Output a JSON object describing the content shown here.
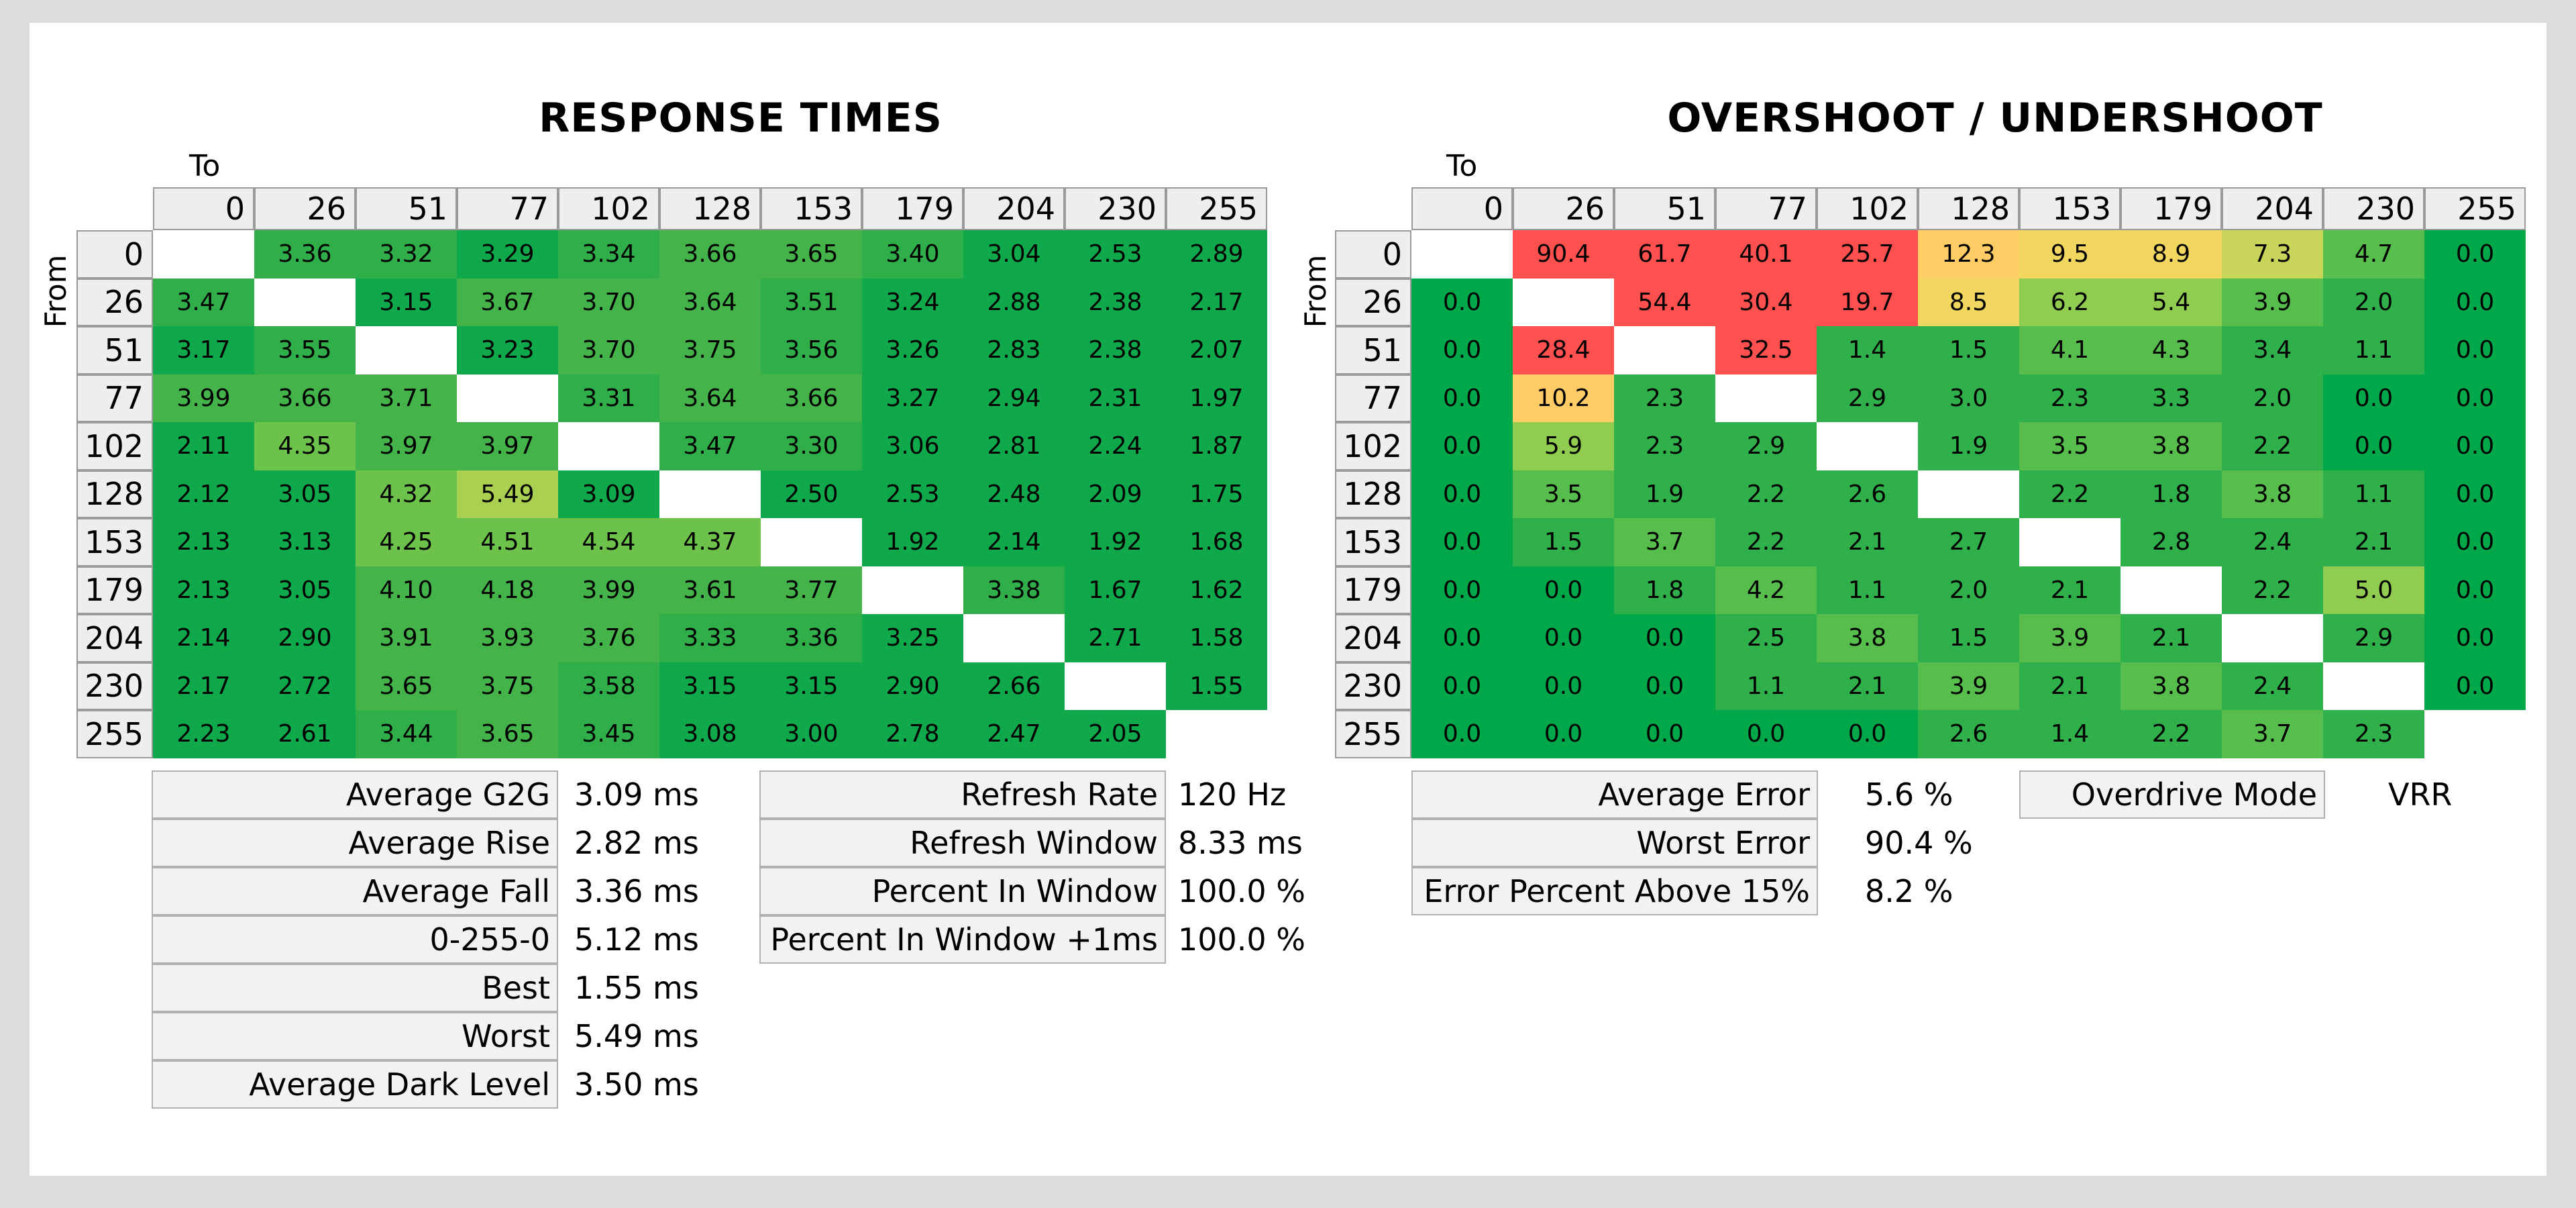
{
  "chart_data": [
    {
      "type": "heatmap",
      "title": "RESPONSE TIMES",
      "xlabel": "To",
      "ylabel": "From",
      "x": [
        "0",
        "26",
        "51",
        "77",
        "102",
        "128",
        "153",
        "179",
        "204",
        "230",
        "255"
      ],
      "y": [
        "0",
        "26",
        "51",
        "77",
        "102",
        "128",
        "153",
        "179",
        "204",
        "230",
        "255"
      ],
      "values": [
        [
          null,
          "3.36",
          "3.32",
          "3.29",
          "3.34",
          "3.66",
          "3.65",
          "3.40",
          "3.04",
          "2.53",
          "2.89"
        ],
        [
          "3.47",
          null,
          "3.15",
          "3.67",
          "3.70",
          "3.64",
          "3.51",
          "3.24",
          "2.88",
          "2.38",
          "2.17"
        ],
        [
          "3.17",
          "3.55",
          null,
          "3.23",
          "3.70",
          "3.75",
          "3.56",
          "3.26",
          "2.83",
          "2.38",
          "2.07"
        ],
        [
          "3.99",
          "3.66",
          "3.71",
          null,
          "3.31",
          "3.64",
          "3.66",
          "3.27",
          "2.94",
          "2.31",
          "1.97"
        ],
        [
          "2.11",
          "4.35",
          "3.97",
          "3.97",
          null,
          "3.47",
          "3.30",
          "3.06",
          "2.81",
          "2.24",
          "1.87"
        ],
        [
          "2.12",
          "3.05",
          "4.32",
          "5.49",
          "3.09",
          null,
          "2.50",
          "2.53",
          "2.48",
          "2.09",
          "1.75"
        ],
        [
          "2.13",
          "3.13",
          "4.25",
          "4.51",
          "4.54",
          "4.37",
          null,
          "1.92",
          "2.14",
          "1.92",
          "1.68"
        ],
        [
          "2.13",
          "3.05",
          "4.10",
          "4.18",
          "3.99",
          "3.61",
          "3.77",
          null,
          "3.38",
          "1.67",
          "1.62"
        ],
        [
          "2.14",
          "2.90",
          "3.91",
          "3.93",
          "3.76",
          "3.33",
          "3.36",
          "3.25",
          null,
          "2.71",
          "1.58"
        ],
        [
          "2.17",
          "2.72",
          "3.65",
          "3.75",
          "3.58",
          "3.15",
          "3.15",
          "2.90",
          "2.66",
          null,
          "1.55"
        ],
        [
          "2.23",
          "2.61",
          "3.44",
          "3.65",
          "3.45",
          "3.08",
          "3.00",
          "2.78",
          "2.47",
          "2.05",
          null
        ]
      ]
    },
    {
      "type": "heatmap",
      "title": "OVERSHOOT / UNDERSHOOT",
      "xlabel": "To",
      "ylabel": "From",
      "x": [
        "0",
        "26",
        "51",
        "77",
        "102",
        "128",
        "153",
        "179",
        "204",
        "230",
        "255"
      ],
      "y": [
        "0",
        "26",
        "51",
        "77",
        "102",
        "128",
        "153",
        "179",
        "204",
        "230",
        "255"
      ],
      "values": [
        [
          null,
          "90.4",
          "61.7",
          "40.1",
          "25.7",
          "12.3",
          "9.5",
          "8.9",
          "7.3",
          "4.7",
          "0.0"
        ],
        [
          "0.0",
          null,
          "54.4",
          "30.4",
          "19.7",
          "8.5",
          "6.2",
          "5.4",
          "3.9",
          "2.0",
          "0.0"
        ],
        [
          "0.0",
          "28.4",
          null,
          "32.5",
          "1.4",
          "1.5",
          "4.1",
          "4.3",
          "3.4",
          "1.1",
          "0.0"
        ],
        [
          "0.0",
          "10.2",
          "2.3",
          null,
          "2.9",
          "3.0",
          "2.3",
          "3.3",
          "2.0",
          "0.0",
          "0.0"
        ],
        [
          "0.0",
          "5.9",
          "2.3",
          "2.9",
          null,
          "1.9",
          "3.5",
          "3.8",
          "2.2",
          "0.0",
          "0.0"
        ],
        [
          "0.0",
          "3.5",
          "1.9",
          "2.2",
          "2.6",
          null,
          "2.2",
          "1.8",
          "3.8",
          "1.1",
          "0.0"
        ],
        [
          "0.0",
          "1.5",
          "3.7",
          "2.2",
          "2.1",
          "2.7",
          null,
          "2.8",
          "2.4",
          "2.1",
          "0.0"
        ],
        [
          "0.0",
          "0.0",
          "1.8",
          "4.2",
          "1.1",
          "2.0",
          "2.1",
          null,
          "2.2",
          "5.0",
          "0.0"
        ],
        [
          "0.0",
          "0.0",
          "0.0",
          "2.5",
          "3.8",
          "1.5",
          "3.9",
          "2.1",
          null,
          "2.9",
          "0.0"
        ],
        [
          "0.0",
          "0.0",
          "0.0",
          "1.1",
          "2.1",
          "3.9",
          "2.1",
          "3.8",
          "2.4",
          null,
          "0.0"
        ],
        [
          "0.0",
          "0.0",
          "0.0",
          "0.0",
          "0.0",
          "2.6",
          "1.4",
          "2.2",
          "3.7",
          "2.3",
          null
        ]
      ]
    }
  ],
  "stats": {
    "response_left": [
      {
        "label": "Average G2G",
        "value": "3.09 ms"
      },
      {
        "label": "Average Rise",
        "value": "2.82 ms"
      },
      {
        "label": "Average Fall",
        "value": "3.36 ms"
      },
      {
        "label": "0-255-0",
        "value": "5.12 ms"
      },
      {
        "label": "Best",
        "value": "1.55 ms"
      },
      {
        "label": "Worst",
        "value": "5.49 ms"
      },
      {
        "label": "Average Dark Level",
        "value": "3.50 ms"
      }
    ],
    "response_right": [
      {
        "label": "Refresh Rate",
        "value": "120 Hz"
      },
      {
        "label": "Refresh Window",
        "value": "8.33 ms"
      },
      {
        "label": "Percent In Window",
        "value": "100.0 %"
      },
      {
        "label": "Percent In Window +1ms",
        "value": "100.0 %"
      }
    ],
    "overshoot_left": [
      {
        "label": "Average Error",
        "value": "5.6 %"
      },
      {
        "label": "Worst Error",
        "value": "90.4 %"
      },
      {
        "label": "Error Percent Above 15%",
        "value": "8.2 %"
      }
    ],
    "overshoot_right": [
      {
        "label": "Overdrive Mode",
        "value": "VRR"
      }
    ]
  },
  "colors": {
    "green": "#00b050",
    "yellow_green": "#92d050",
    "yellow": "#ffd966",
    "orange": "#f4b183",
    "red": "#ff5050",
    "header": "#eeeeee"
  }
}
